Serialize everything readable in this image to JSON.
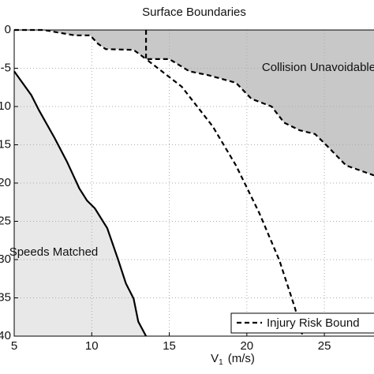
{
  "chart_data": {
    "type": "line",
    "title": "Surface Boundaries",
    "xlabel": "V",
    "xlabel_sub": "1",
    "xlabel_unit": "(m/s)",
    "xlim": [
      5,
      28.2
    ],
    "ylim": [
      -40,
      0
    ],
    "xticks": [
      5,
      10,
      15,
      20,
      25
    ],
    "yticks": [
      0,
      -5,
      -10,
      -15,
      -20,
      -25,
      -30,
      -35,
      -40
    ],
    "grid": true,
    "annotations": [
      "Collision Unavoidable",
      "Speeds Matched"
    ],
    "series": [
      {
        "color": "#000000",
        "style": "dashed",
        "fill": "above",
        "fill_color": "#c8c8c8",
        "x": [
          5,
          6.9,
          8.9,
          9.9,
          10.4,
          10.9,
          12.7,
          13.5,
          15,
          16.3,
          17.5,
          19.3,
          20.3,
          21.6,
          22.4,
          23.4,
          24.4,
          25.2,
          26.4,
          28.2
        ],
        "values": [
          0,
          0,
          -0.7,
          -0.7,
          -1.8,
          -2.5,
          -2.6,
          -3.8,
          -3.8,
          -5.4,
          -5.9,
          -6.9,
          -9,
          -10,
          -12.1,
          -13.1,
          -13.6,
          -15.2,
          -17.7,
          -19
        ]
      },
      {
        "color": "#000000",
        "style": "solid",
        "fill": "below",
        "fill_color": "#e8e8e8",
        "x": [
          5,
          6.1,
          6.6,
          7.6,
          8.4,
          9.2,
          9.7,
          10.2,
          11,
          11.7,
          12.2,
          12.7,
          13,
          13.5
        ],
        "values": [
          -5.4,
          -8.5,
          -10.5,
          -14.1,
          -17.2,
          -20.7,
          -22.3,
          -23.3,
          -25.9,
          -30,
          -33.1,
          -35.1,
          -38.1,
          -40
        ]
      },
      {
        "name": "Injury Risk Bound",
        "color": "#000000",
        "style": "dashed",
        "fill": "none",
        "x": [
          13.5,
          13.5,
          15.8,
          17.8,
          19.3,
          20.8,
          22.1,
          23.1,
          23.6
        ],
        "values": [
          0,
          -3.8,
          -7.4,
          -12.6,
          -17.7,
          -23.9,
          -30.1,
          -36.3,
          -40
        ]
      }
    ]
  }
}
